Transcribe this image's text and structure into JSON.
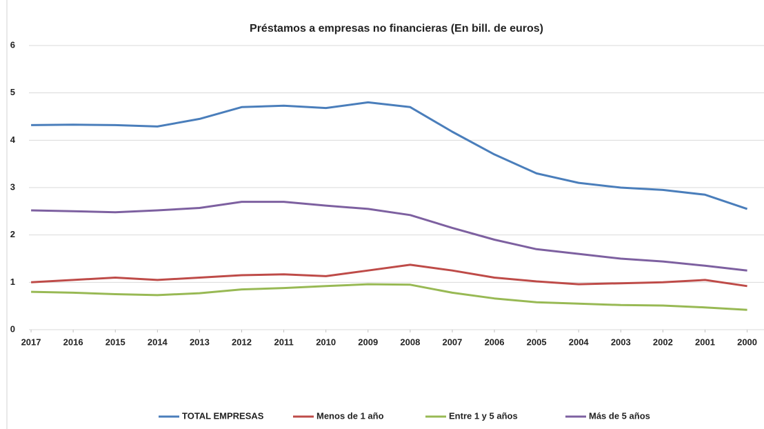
{
  "chart_data": {
    "type": "line",
    "title": "Préstamos a empresas no financieras (En bill. de euros)",
    "x": [
      2017,
      2016,
      2015,
      2014,
      2013,
      2012,
      2011,
      2010,
      2009,
      2008,
      2007,
      2006,
      2005,
      2004,
      2003,
      2002,
      2001,
      2000
    ],
    "xlim": [
      2017.05,
      1999.6
    ],
    "xticks": [
      2017,
      2016,
      2015,
      2014,
      2013,
      2012,
      2011,
      2010,
      2009,
      2008,
      2007,
      2006,
      2005,
      2004,
      2003,
      2002,
      2001,
      2000
    ],
    "ylim": [
      0,
      6
    ],
    "yticks": [
      0,
      1,
      2,
      3,
      4,
      5,
      6
    ],
    "grid": true,
    "legend": "bottom",
    "series": [
      {
        "name": "TOTAL EMPRESAS",
        "color": "#4a7ebb",
        "values": [
          4.32,
          4.33,
          4.32,
          4.29,
          4.45,
          4.7,
          4.73,
          4.68,
          4.8,
          4.7,
          4.18,
          3.7,
          3.3,
          3.1,
          3.0,
          2.95,
          2.85,
          2.55
        ]
      },
      {
        "name": "Menos de 1 año",
        "color": "#be4b48",
        "values": [
          1.0,
          1.05,
          1.1,
          1.05,
          1.1,
          1.15,
          1.17,
          1.13,
          1.25,
          1.37,
          1.25,
          1.1,
          1.02,
          0.96,
          0.98,
          1.0,
          1.05,
          0.92
        ]
      },
      {
        "name": "Entre 1 y 5 años",
        "color": "#98b954",
        "values": [
          0.8,
          0.78,
          0.75,
          0.73,
          0.77,
          0.85,
          0.88,
          0.92,
          0.96,
          0.95,
          0.78,
          0.66,
          0.58,
          0.55,
          0.52,
          0.51,
          0.47,
          0.42
        ]
      },
      {
        "name": "Más de 5 años",
        "color": "#7d60a0",
        "values": [
          2.52,
          2.5,
          2.48,
          2.52,
          2.57,
          2.7,
          2.7,
          2.62,
          2.55,
          2.42,
          2.15,
          1.9,
          1.7,
          1.6,
          1.5,
          1.44,
          1.35,
          1.25
        ]
      }
    ]
  }
}
